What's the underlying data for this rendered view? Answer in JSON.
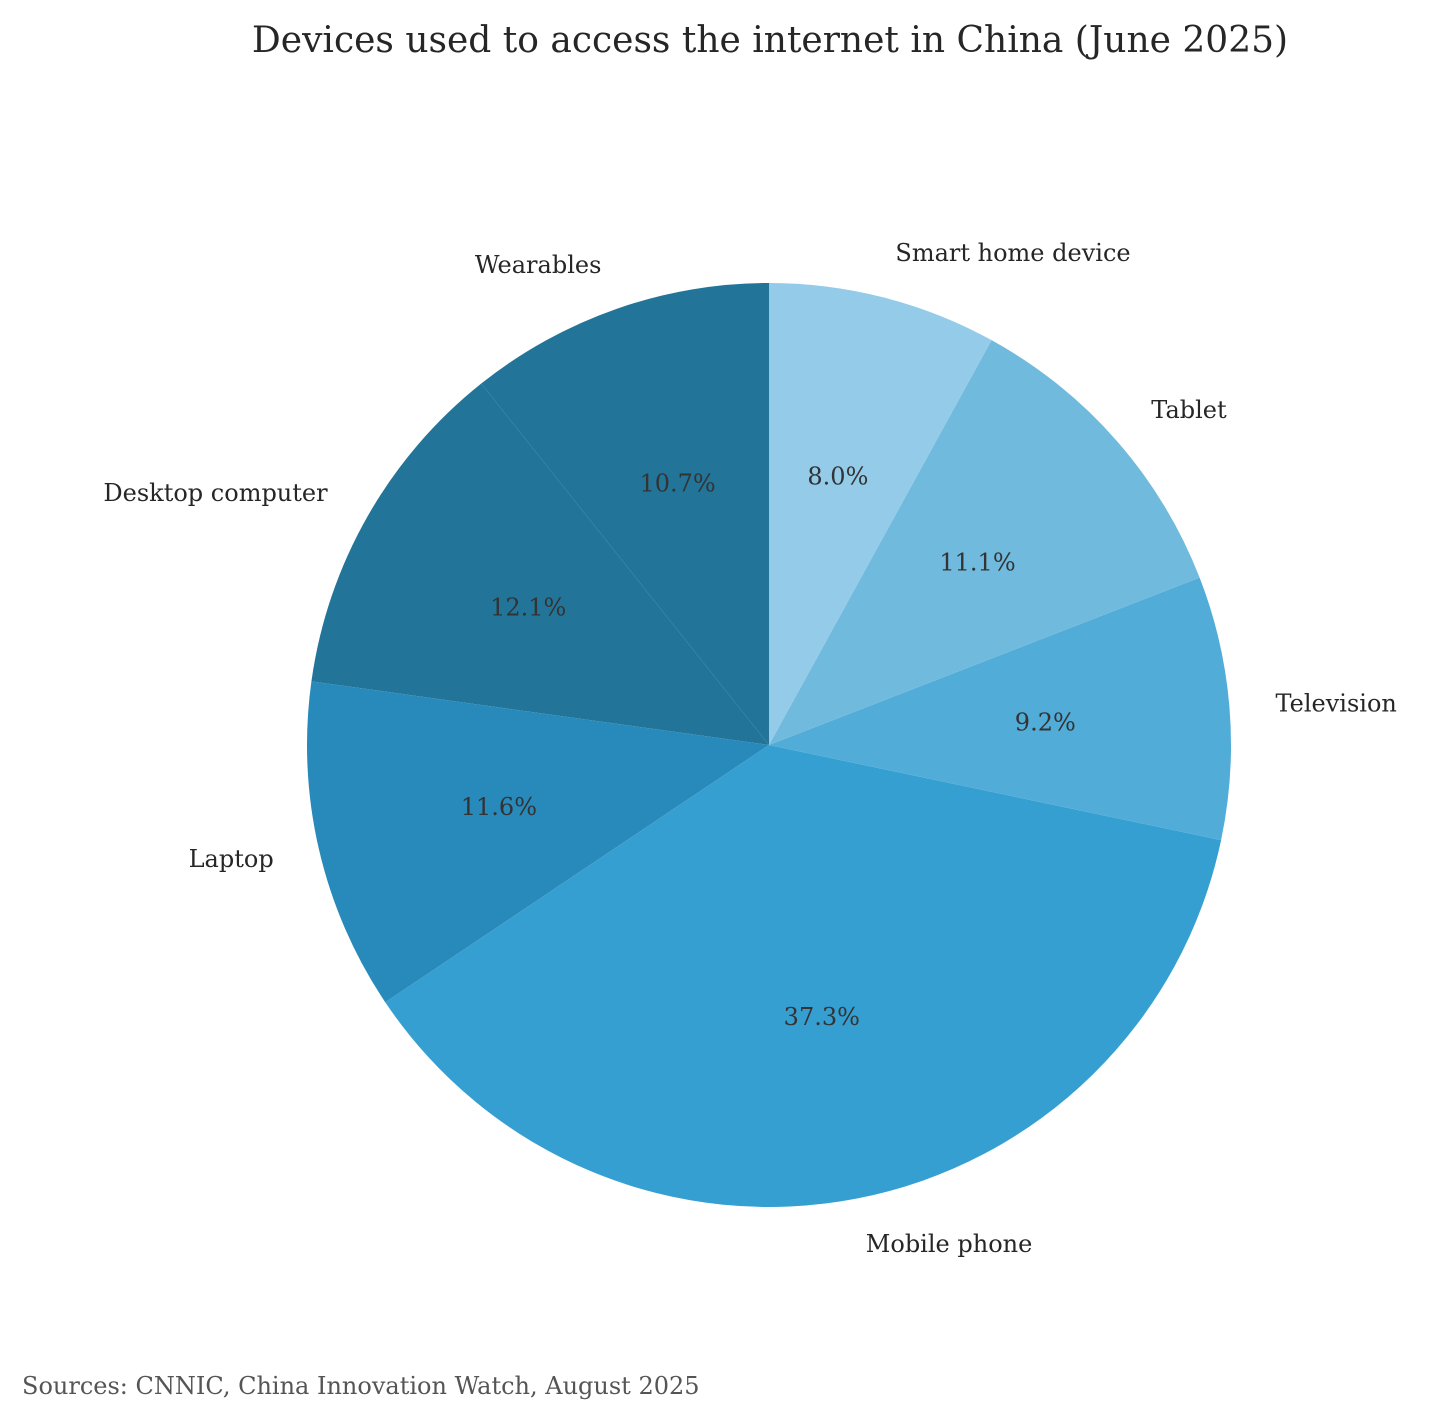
{
  "chart_data": {
    "type": "pie",
    "title": "Devices used to access the internet in China (June 2025)",
    "categories": [
      "Wearables",
      "Desktop computer",
      "Laptop",
      "Mobile phone",
      "Television",
      "Tablet",
      "Smart home device"
    ],
    "values": [
      10.7,
      12.1,
      11.6,
      37.3,
      9.2,
      11.1,
      8.0
    ],
    "value_labels": [
      "10.7%",
      "12.1%",
      "11.6%",
      "37.3%",
      "9.2%",
      "11.1%",
      "8.0%"
    ],
    "colors": [
      "#227599",
      "#227599",
      "#2889bb",
      "#369fd2",
      "#51acd8",
      "#70bade",
      "#93cbe8"
    ],
    "start_angle_deg": 90,
    "direction": "counterclockwise",
    "legend": "none"
  },
  "source": "Sources: CNNIC, China Innovation Watch, August 2025"
}
